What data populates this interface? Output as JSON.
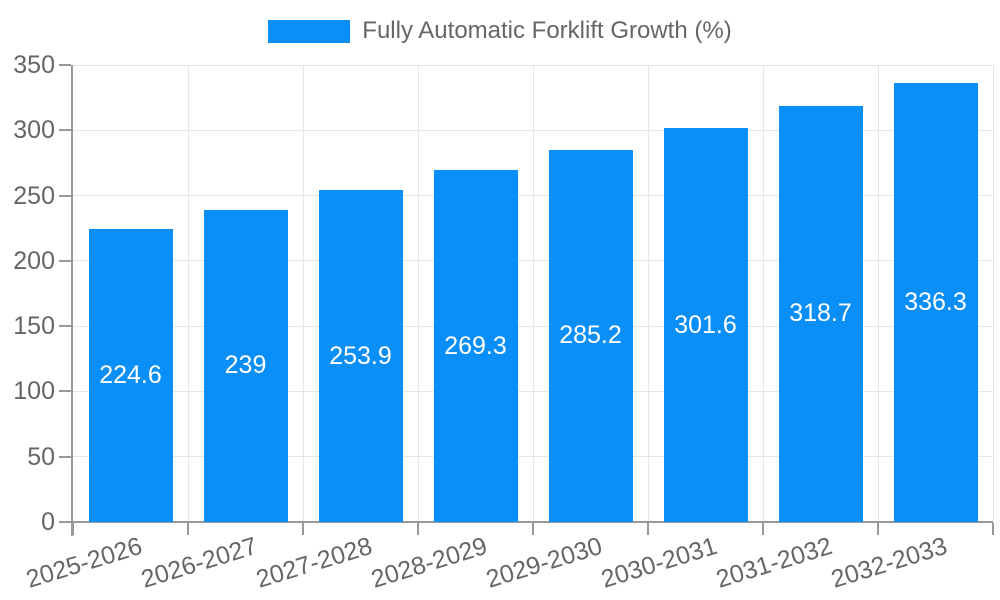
{
  "legend": {
    "label": "Fully Automatic Forklift Growth (%)"
  },
  "chart_data": {
    "type": "bar",
    "title": "",
    "xlabel": "",
    "ylabel": "",
    "categories": [
      "2025-2026",
      "2026-2027",
      "2027-2028",
      "2028-2029",
      "2029-2030",
      "2030-2031",
      "2031-2032",
      "2032-2033"
    ],
    "values": [
      224.6,
      239,
      253.9,
      269.3,
      285.2,
      301.6,
      318.7,
      336.3
    ],
    "value_labels": [
      "224.6",
      "239",
      "253.9",
      "269.3",
      "285.2",
      "301.6",
      "318.7",
      "336.3"
    ],
    "series_name": "Fully Automatic Forklift Growth (%)",
    "ylim": [
      0,
      350
    ],
    "yticks": [
      0,
      50,
      100,
      150,
      200,
      250,
      300,
      350
    ],
    "grid": true,
    "legend_position": "top-center",
    "x_label_rotation_deg": -17,
    "colors": {
      "bar": "#0a8ff9",
      "annotation_text": "#ffffff",
      "axis_line": "#999999",
      "gridline": "#e6e6e6",
      "tick_text": "#666666",
      "legend_text": "#666666",
      "background": "#ffffff"
    }
  }
}
